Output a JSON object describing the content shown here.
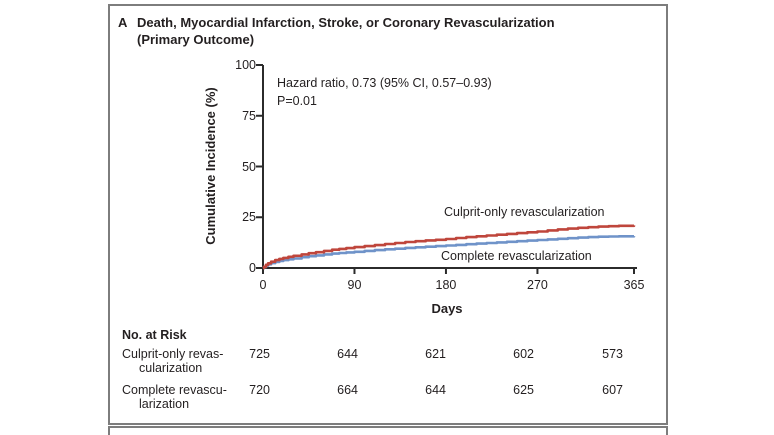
{
  "panel": {
    "label": "A",
    "title_line1": "Death, Myocardial Infarction, Stroke, or Coronary Revascularization",
    "title_line2": "(Primary Outcome)"
  },
  "annotation": {
    "line1": "Hazard ratio, 0.73 (95% CI, 0.57–0.93)",
    "line2": "P=0.01"
  },
  "colors": {
    "culprit_red": "#bf463c",
    "complete_blue": "#6f93c9",
    "axis": "#2b2b2b",
    "border_gray": "#7d7d7d",
    "text": "#231f20"
  },
  "chart_data": {
    "type": "line",
    "title": "Death, Myocardial Infarction, Stroke, or Coronary Revascularization (Primary Outcome)",
    "xlabel": "Days",
    "ylabel": "Cumulative Incidence (%)",
    "xlim": [
      0,
      365
    ],
    "ylim": [
      0,
      100
    ],
    "xticks": [
      0,
      90,
      180,
      270,
      365
    ],
    "yticks": [
      100,
      75,
      50,
      25,
      0
    ],
    "legend_position": "inline-curve-labels",
    "grid": false,
    "curve_style": "kaplan-meier-step",
    "series": [
      {
        "name": "Complete revascularization",
        "color": "#6f93c9",
        "x": [
          0,
          1,
          3,
          5,
          8,
          12,
          16,
          20,
          25,
          30,
          38,
          45,
          52,
          60,
          68,
          75,
          82,
          90,
          100,
          110,
          120,
          130,
          140,
          150,
          160,
          170,
          180,
          190,
          200,
          210,
          220,
          230,
          240,
          250,
          260,
          270,
          280,
          290,
          300,
          310,
          320,
          330,
          340,
          350,
          365
        ],
        "y": [
          0,
          0.5,
          1.2,
          1.8,
          2.4,
          3.0,
          3.5,
          3.9,
          4.3,
          4.7,
          5.3,
          5.8,
          6.2,
          6.7,
          7.1,
          7.4,
          7.7,
          8.0,
          8.4,
          8.8,
          9.2,
          9.5,
          9.9,
          10.2,
          10.5,
          10.8,
          11.1,
          11.4,
          11.7,
          12.0,
          12.3,
          12.6,
          12.9,
          13.2,
          13.5,
          13.8,
          14.1,
          14.4,
          14.7,
          15.0,
          15.2,
          15.4,
          15.5,
          15.6,
          15.7
        ]
      },
      {
        "name": "Culprit-only revascularization",
        "color": "#bf463c",
        "x": [
          0,
          1,
          3,
          5,
          8,
          12,
          16,
          20,
          25,
          30,
          38,
          45,
          52,
          60,
          68,
          75,
          82,
          90,
          100,
          110,
          120,
          130,
          140,
          150,
          160,
          170,
          180,
          190,
          200,
          210,
          220,
          230,
          240,
          250,
          260,
          270,
          280,
          290,
          300,
          310,
          320,
          330,
          340,
          350,
          365
        ],
        "y": [
          0,
          0.6,
          1.6,
          2.3,
          3.1,
          3.9,
          4.5,
          5.0,
          5.5,
          6.0,
          6.7,
          7.3,
          7.8,
          8.4,
          9.0,
          9.4,
          9.8,
          10.3,
          10.8,
          11.3,
          11.8,
          12.3,
          12.8,
          13.2,
          13.6,
          13.9,
          14.3,
          14.8,
          15.2,
          15.6,
          16.0,
          16.4,
          16.8,
          17.2,
          17.6,
          18.0,
          18.5,
          19.0,
          19.4,
          19.8,
          20.1,
          20.4,
          20.6,
          20.8,
          21.0
        ]
      }
    ],
    "risk_table": {
      "header": "No. at Risk",
      "rows": [
        {
          "label_line1": "Culprit-only revas-",
          "label_line2": "cularization",
          "values": [
            "725",
            "644",
            "621",
            "602",
            "573"
          ]
        },
        {
          "label_line1": "Complete revascu-",
          "label_line2": "larization",
          "values": [
            "720",
            "664",
            "644",
            "625",
            "607"
          ]
        }
      ]
    }
  }
}
